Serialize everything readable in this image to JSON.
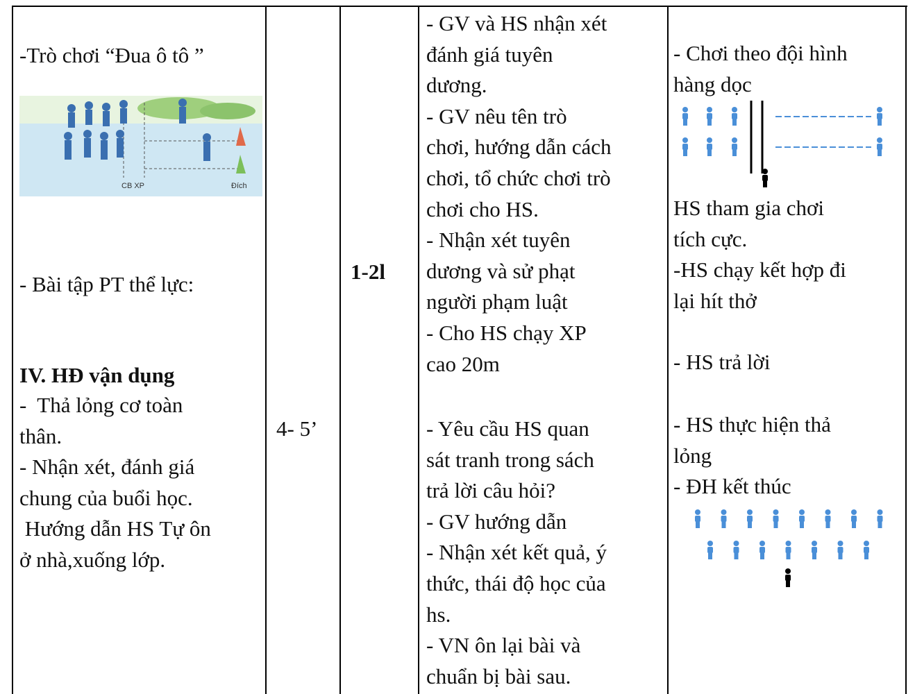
{
  "table": {
    "col1": {
      "game": [
        "-Trò chơi “Đua ô tô ”"
      ],
      "image_labels": [
        "CB XP",
        "Đích"
      ],
      "exercise": [
        "- Bài tập PT thể lực:"
      ],
      "heading": "IV. HĐ vận dụng",
      "items": [
        "-  Thả lỏng cơ toàn",
        "thân.",
        "- Nhận xét, đánh giá",
        "chung của buổi học.",
        " Hướng dẫn HS Tự ôn",
        "ở nhà,xuống lớp."
      ]
    },
    "col2": {
      "time": [
        "4- 5’"
      ]
    },
    "col3": {
      "count": [
        "1-2l"
      ]
    },
    "col4": {
      "part1": [
        "- GV và HS nhận xét",
        "đánh giá tuyên",
        "dương.",
        "- GV nêu tên trò",
        "chơi, hướng dẫn cách",
        "chơi, tổ chức chơi trò",
        "chơi cho HS.",
        "- Nhận xét tuyên",
        "dương và sử phạt",
        "người phạm luật",
        "- Cho HS chạy XP",
        "cao 20m"
      ],
      "part2": [
        "- Yêu cầu HS quan",
        "sát tranh trong sách",
        "trả lời câu hỏi?",
        "- GV hướng dẫn",
        "- Nhận xét kết quả, ý",
        "thức, thái độ học của",
        "hs.",
        "- VN ôn lại bài và",
        "chuẩn bị bài sau."
      ]
    },
    "col5": {
      "part1": [
        "- Chơi theo đội hình",
        "hàng dọc"
      ],
      "part2": [
        "HS tham gia chơi",
        "tích cực.",
        "-HS chạy kết hợp đi",
        "lại hít thở"
      ],
      "part3": [
        "- HS trả lời"
      ],
      "part4": [
        "- HS thực hiện thả",
        "lỏng",
        "- ĐH kết thúc"
      ]
    }
  }
}
